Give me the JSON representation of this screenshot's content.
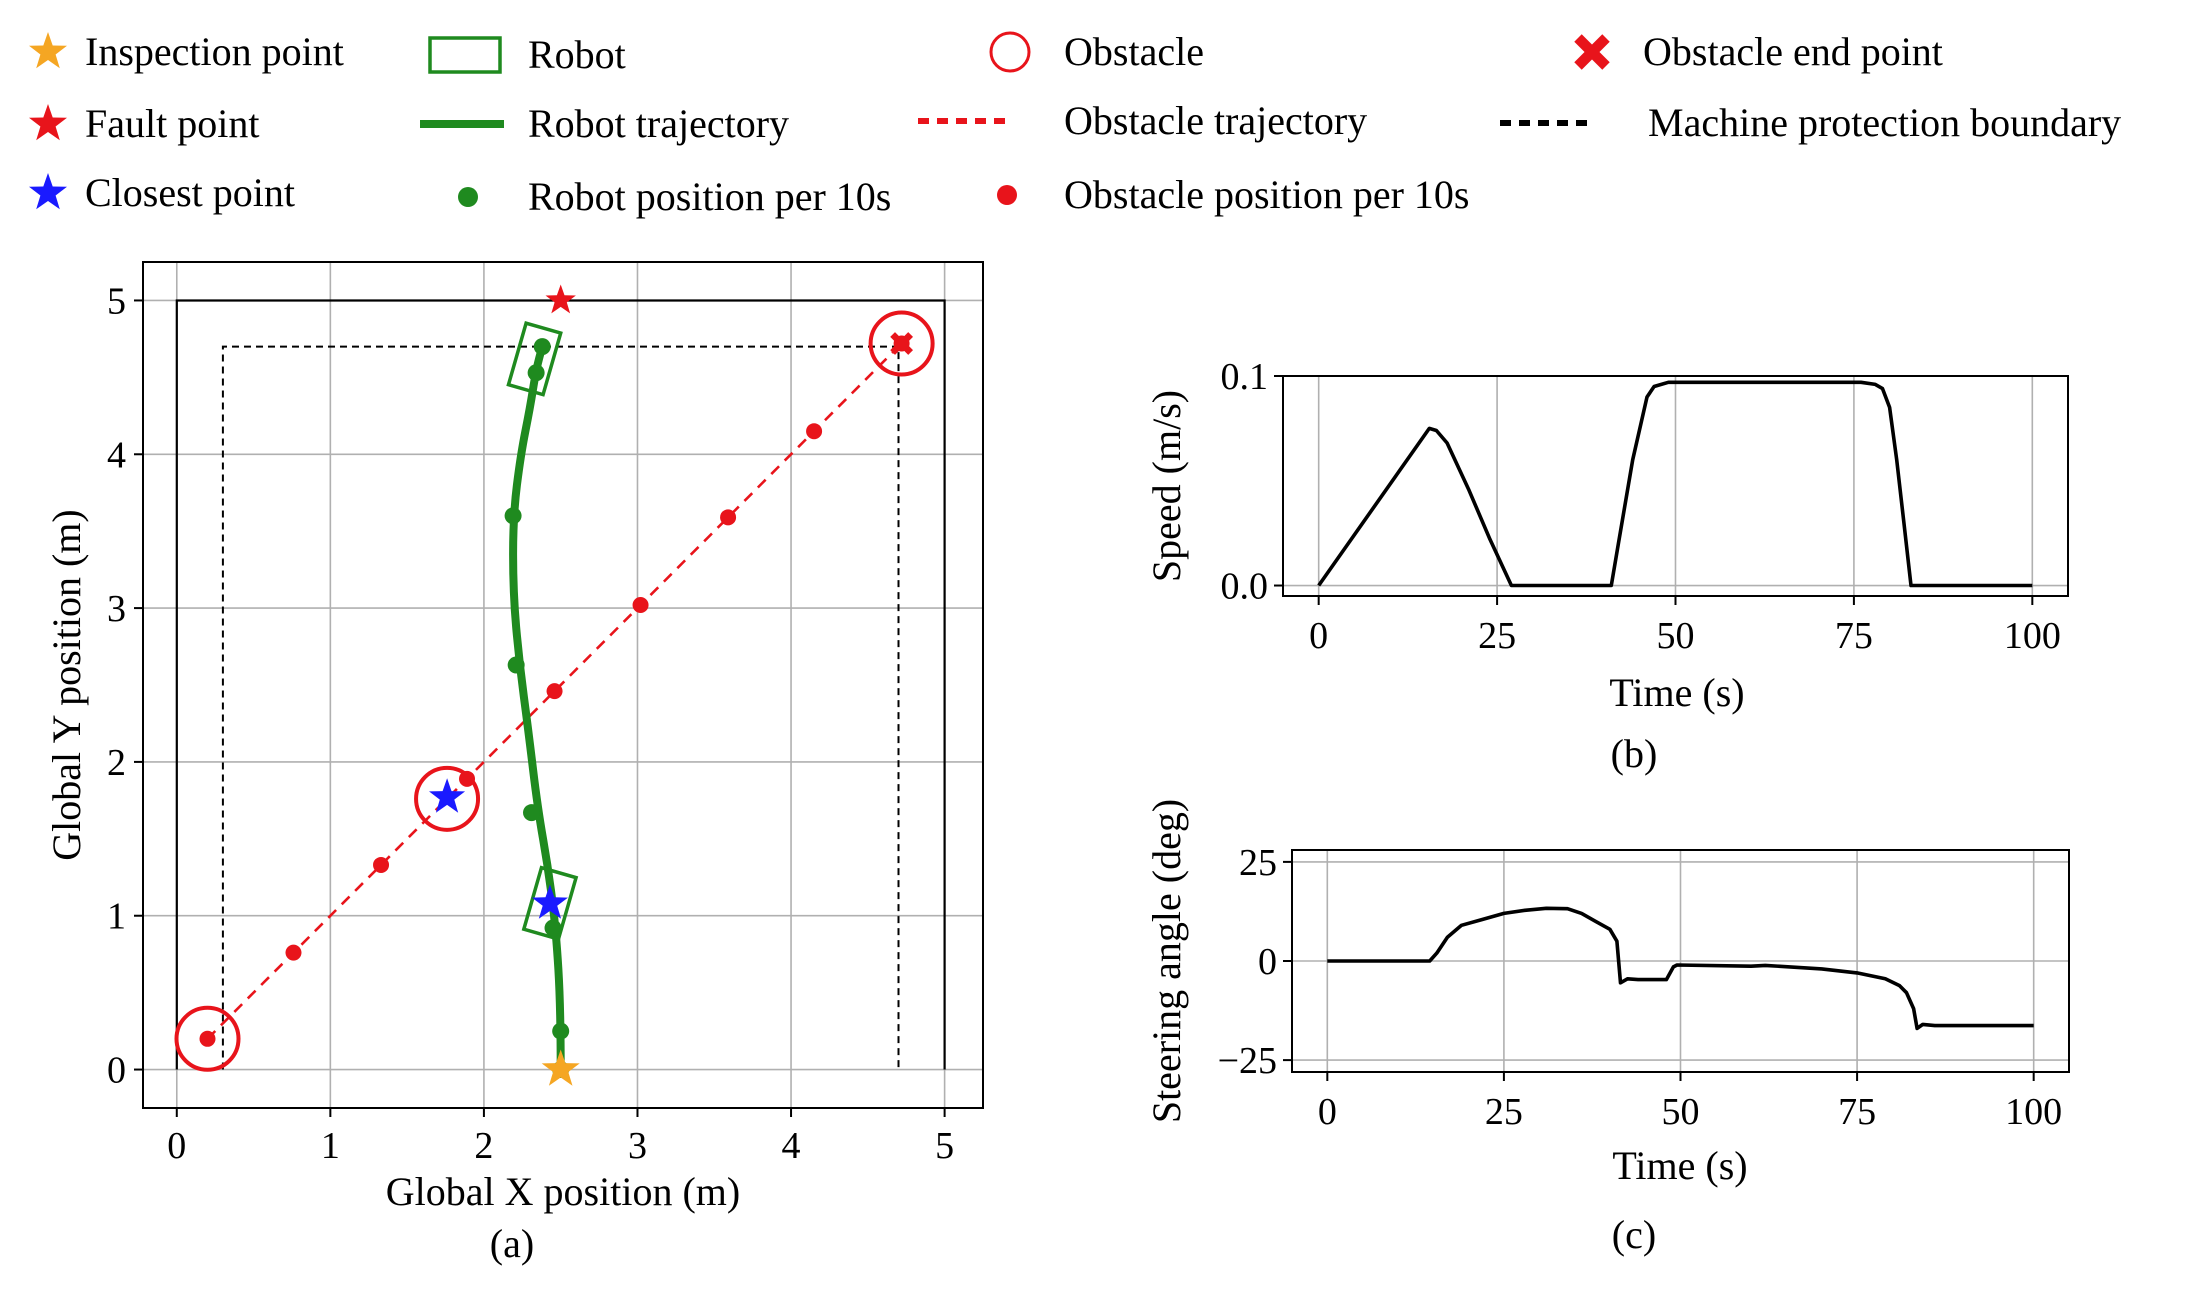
{
  "legend": {
    "items": [
      {
        "label": "Inspection point",
        "icon": "orange-star-icon",
        "color": "#f5a623"
      },
      {
        "label": "Fault point",
        "icon": "red-star-icon",
        "color": "#e8141b"
      },
      {
        "label": "Closest point",
        "icon": "blue-star-icon",
        "color": "#1a1aff"
      },
      {
        "label": "Robot",
        "icon": "green-rectangle-icon",
        "color": "#1f8a1f"
      },
      {
        "label": "Robot trajectory",
        "icon": "green-line-icon",
        "color": "#1f8a1f"
      },
      {
        "label": "Robot position per 10s",
        "icon": "green-dot-icon",
        "color": "#1f8a1f"
      },
      {
        "label": "Obstacle",
        "icon": "red-circle-icon",
        "color": "#e8141b"
      },
      {
        "label": "Obstacle trajectory",
        "icon": "red-dashed-line-icon",
        "color": "#e8141b"
      },
      {
        "label": "Obstacle position per 10s",
        "icon": "red-dot-icon",
        "color": "#e8141b"
      },
      {
        "label": "Obstacle end point",
        "icon": "red-x-icon",
        "color": "#e8141b"
      },
      {
        "label": "Machine protection boundary",
        "icon": "black-dashed-line-icon",
        "color": "#000000"
      }
    ]
  },
  "chart_data": [
    {
      "type": "scatter",
      "id": "a",
      "caption": "(a)",
      "xlabel": "Global X position (m)",
      "ylabel": "Global Y position (m)",
      "xlim": [
        -0.22,
        5.25
      ],
      "ylim": [
        -0.25,
        5.25
      ],
      "xticks": [
        0,
        1,
        2,
        3,
        4,
        5
      ],
      "yticks": [
        0,
        1,
        2,
        3,
        4,
        5
      ],
      "grid": true,
      "workspace_boundary": [
        [
          0,
          0
        ],
        [
          0,
          5
        ],
        [
          5,
          5
        ],
        [
          5,
          0
        ]
      ],
      "protection_boundary": [
        [
          0.3,
          0
        ],
        [
          0.3,
          4.7
        ],
        [
          4.7,
          4.7
        ],
        [
          4.7,
          0
        ]
      ],
      "robot_trajectory": [
        [
          2.5,
          0
        ],
        [
          2.5,
          0.4
        ],
        [
          2.47,
          0.9
        ],
        [
          2.42,
          1.3
        ],
        [
          2.35,
          1.7
        ],
        [
          2.29,
          2.2
        ],
        [
          2.23,
          2.65
        ],
        [
          2.19,
          3.1
        ],
        [
          2.19,
          3.6
        ],
        [
          2.24,
          4.0
        ],
        [
          2.3,
          4.3
        ],
        [
          2.34,
          4.55
        ],
        [
          2.38,
          4.7
        ]
      ],
      "robot_positions": [
        [
          2.5,
          0
        ],
        [
          2.5,
          0.25
        ],
        [
          2.45,
          0.92
        ],
        [
          2.31,
          1.67
        ],
        [
          2.21,
          2.63
        ],
        [
          2.19,
          3.6
        ],
        [
          2.34,
          4.53
        ],
        [
          2.38,
          4.7
        ]
      ],
      "robot_boxes": [
        {
          "x": 2.43,
          "y": 1.08,
          "angle": -16
        },
        {
          "x": 2.33,
          "y": 4.62,
          "angle": -16
        }
      ],
      "obstacle_trajectory": [
        [
          0.2,
          0.2
        ],
        [
          4.72,
          4.72
        ]
      ],
      "obstacle_positions": [
        [
          0.2,
          0.2
        ],
        [
          0.76,
          0.76
        ],
        [
          1.33,
          1.33
        ],
        [
          1.89,
          1.89
        ],
        [
          2.46,
          2.46
        ],
        [
          3.02,
          3.02
        ],
        [
          3.59,
          3.59
        ],
        [
          4.15,
          4.15
        ],
        [
          4.72,
          4.72
        ]
      ],
      "obstacle_circles": [
        [
          0.2,
          0.2
        ],
        [
          1.76,
          1.76
        ],
        [
          4.72,
          4.72
        ]
      ],
      "inspection_point": [
        2.5,
        0
      ],
      "fault_point": [
        2.5,
        5
      ],
      "closest_points": [
        [
          1.76,
          1.77
        ],
        [
          2.43,
          1.08
        ]
      ],
      "obstacle_end_point": [
        4.72,
        4.72
      ]
    },
    {
      "type": "line",
      "id": "b",
      "caption": "(b)",
      "xlabel": "Time (s)",
      "ylabel": "Speed (m/s)",
      "xlim": [
        -5,
        105
      ],
      "ylim": [
        -0.005,
        0.1
      ],
      "xticks": [
        0,
        25,
        50,
        75,
        100
      ],
      "yticks": [
        0.0,
        0.1
      ],
      "ytick_labels": [
        "0.0",
        "0.1"
      ],
      "grid": true,
      "series": [
        {
          "name": "Speed",
          "x": [
            0,
            15.5,
            16.5,
            18,
            21,
            24,
            27,
            41,
            42,
            44,
            46,
            47,
            49,
            60,
            70,
            76,
            78,
            79,
            80,
            81,
            82,
            83,
            100
          ],
          "y": [
            0,
            0.075,
            0.074,
            0.068,
            0.046,
            0.022,
            0,
            0,
            0.02,
            0.06,
            0.09,
            0.095,
            0.097,
            0.097,
            0.097,
            0.097,
            0.096,
            0.094,
            0.085,
            0.06,
            0.03,
            0,
            0
          ]
        }
      ]
    },
    {
      "type": "line",
      "id": "c",
      "caption": "(c)",
      "xlabel": "Time (s)",
      "ylabel": "Steering angle (deg)",
      "xlim": [
        -5,
        105
      ],
      "ylim": [
        -28,
        28
      ],
      "xticks": [
        0,
        25,
        50,
        75,
        100
      ],
      "yticks": [
        -25,
        0,
        25
      ],
      "ytick_labels": [
        "−25",
        "0",
        "25"
      ],
      "grid": true,
      "series": [
        {
          "name": "Steering angle",
          "x": [
            0,
            14.5,
            15.5,
            17,
            19,
            22,
            25,
            28,
            31,
            34,
            36,
            38,
            40,
            41,
            41.5,
            42.5,
            44,
            48,
            49,
            49.5,
            60,
            62,
            70,
            75,
            79,
            81,
            82,
            83,
            83.5,
            84.3,
            86,
            100
          ],
          "y": [
            0,
            0,
            2,
            6,
            9,
            10.5,
            12,
            12.8,
            13.3,
            13.2,
            12,
            10,
            8,
            5,
            -5.5,
            -4.5,
            -4.7,
            -4.7,
            -1.5,
            -1,
            -1.3,
            -1.1,
            -2,
            -3,
            -4.5,
            -6.2,
            -8,
            -12,
            -17,
            -16,
            -16.3,
            -16.3
          ]
        }
      ]
    }
  ]
}
